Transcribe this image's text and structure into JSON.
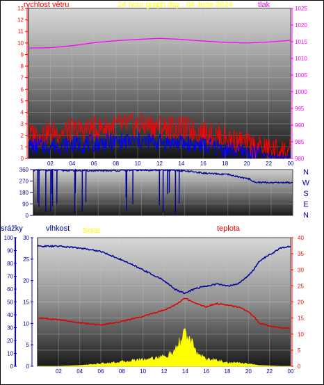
{
  "colors": {
    "speed": "#ff0000",
    "gust": "#0000ff",
    "pressure": "#ff00ff",
    "direction": "#000099",
    "humidity": "#000099",
    "temperature": "#dd0000",
    "solar": "#ffff00",
    "rain": "#0000ff",
    "title": "#ffff00",
    "temp_axis": "#ff0000"
  },
  "chart_data": [
    {
      "type": "line",
      "title": "24 hour graph day : 04 June 2024",
      "ylabel_left": "rychlost větru",
      "ylabel_right": "tlak",
      "x_ticks": [
        "02",
        "04",
        "06",
        "08",
        "10",
        "12",
        "14",
        "16",
        "18",
        "20",
        "22",
        "00"
      ],
      "left_ticks": [
        "0",
        "1",
        "2",
        "3",
        "4",
        "5",
        "6",
        "7",
        "8",
        "9",
        "10",
        "11",
        "12",
        "13"
      ],
      "right_ticks": [
        "980",
        "985",
        "990",
        "995",
        "1000",
        "1005",
        "1010",
        "1015",
        "1020",
        "1025"
      ],
      "ylim_left": [
        0,
        13
      ],
      "ylim_right": [
        980,
        1025
      ],
      "hours": [
        0,
        2,
        4,
        6,
        8,
        10,
        12,
        14,
        16,
        18,
        20,
        22,
        24
      ],
      "series": [
        {
          "name": "tlak",
          "axis": "right",
          "values": [
            1013.1,
            1013.2,
            1013.8,
            1014.7,
            1015.3,
            1015.7,
            1016.0,
            1015.7,
            1015.2,
            1014.8,
            1014.6,
            1014.9,
            1015.4
          ]
        },
        {
          "name": "rychlost větru",
          "axis": "left",
          "values": [
            2.0,
            2.2,
            2.4,
            2.6,
            2.8,
            2.9,
            2.8,
            2.6,
            2.3,
            1.8,
            1.2,
            0.8,
            0.6
          ]
        },
        {
          "name": "gust",
          "axis": "left",
          "values": [
            1.0,
            1.1,
            1.2,
            1.3,
            1.4,
            1.5,
            1.4,
            1.3,
            1.1,
            0.8,
            0.5,
            0.2,
            0.1
          ]
        }
      ]
    },
    {
      "type": "line",
      "x_ticks": [
        "02",
        "04",
        "06",
        "08",
        "10",
        "12",
        "14",
        "16",
        "18",
        "20",
        "22",
        "00"
      ],
      "left_ticks": [
        "0",
        "90",
        "180",
        "270",
        "360"
      ],
      "ylim": [
        0,
        360
      ],
      "right_labels": [
        "N",
        "W",
        "S",
        "E",
        "N"
      ],
      "hours": [
        0,
        2,
        4,
        6,
        8,
        10,
        12,
        14,
        15,
        16,
        18,
        20,
        20.5,
        22,
        24
      ],
      "series": [
        {
          "name": "direction",
          "values": [
            355,
            355,
            352,
            350,
            352,
            355,
            355,
            350,
            340,
            330,
            320,
            285,
            260,
            258,
            258
          ]
        }
      ]
    },
    {
      "type": "line",
      "labels": {
        "rain": "srážky",
        "humidity": "vlhkost",
        "solar": "Solar",
        "temperature": "teplota"
      },
      "x_ticks": [
        "02",
        "04",
        "06",
        "08",
        "10",
        "12",
        "14",
        "16",
        "18",
        "20",
        "22",
        "00"
      ],
      "rain_ticks": [
        "0",
        "10",
        "20",
        "30",
        "40",
        "50",
        "60",
        "70",
        "80",
        "90",
        "100"
      ],
      "humidity_ticks": [
        "0",
        "5",
        "10",
        "15",
        "20",
        "25",
        "30"
      ],
      "temperature_ticks": [
        "0",
        "5",
        "10",
        "15",
        "20",
        "25",
        "30",
        "35",
        "40"
      ],
      "ylim_rain": [
        0,
        100
      ],
      "ylim_humidity": [
        0,
        30
      ],
      "ylim_temperature": [
        0,
        40
      ],
      "hours": [
        0,
        2,
        4,
        6,
        8,
        10,
        12,
        13,
        14,
        15,
        16,
        17,
        18,
        19,
        20,
        20.5,
        21,
        22,
        23,
        24
      ],
      "series": [
        {
          "name": "vlhkost",
          "axis": "humidity",
          "values": [
            28.0,
            28.0,
            27.6,
            26.8,
            24.8,
            22.5,
            20.0,
            18.0,
            17.0,
            18.2,
            18.7,
            19.2,
            18.7,
            19.2,
            21.2,
            22.5,
            24.5,
            26.0,
            27.5,
            28.0
          ]
        },
        {
          "name": "teplota",
          "axis": "temperature",
          "values": [
            15.0,
            14.5,
            13.5,
            12.8,
            14.0,
            15.5,
            17.5,
            19.0,
            21.2,
            19.5,
            18.5,
            19.5,
            19.0,
            18.5,
            17.0,
            15.5,
            13.5,
            12.5,
            12.0,
            11.8
          ]
        },
        {
          "name": "Solar",
          "axis": "humidity",
          "values": [
            0,
            0,
            0.2,
            0.6,
            1.0,
            1.6,
            2.2,
            3.2,
            8.0,
            3.4,
            1.6,
            1.4,
            0.8,
            0.8,
            0.6,
            0.4,
            0.2,
            0.1,
            0,
            0
          ]
        }
      ]
    }
  ]
}
